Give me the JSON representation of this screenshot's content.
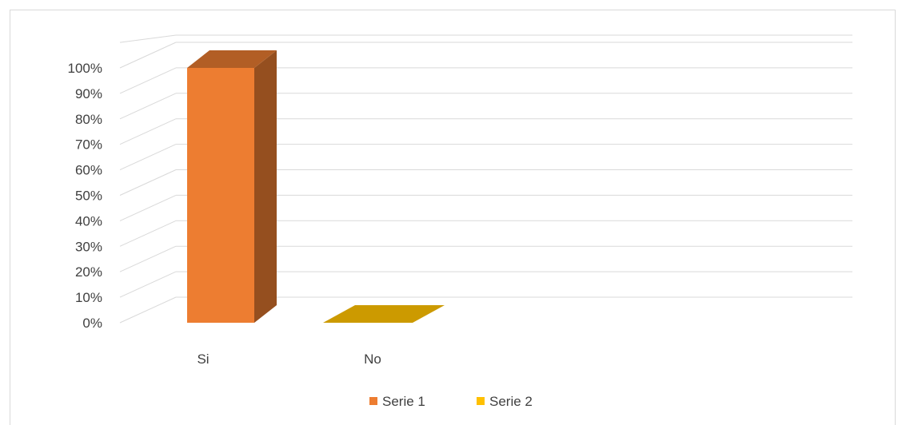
{
  "chart_data": {
    "type": "bar",
    "style": "3d-column",
    "categories": [
      "Si",
      "No"
    ],
    "series": [
      {
        "name": "Serie 1",
        "color": "#ED7D31",
        "values": [
          1.0,
          null
        ]
      },
      {
        "name": "Serie 2",
        "color": "#FFC000",
        "values": [
          null,
          0.0
        ]
      }
    ],
    "y_ticks": [
      "0%",
      "10%",
      "20%",
      "30%",
      "40%",
      "50%",
      "60%",
      "70%",
      "80%",
      "90%",
      "100%"
    ],
    "ylim": [
      0,
      1
    ],
    "grid": true,
    "legend_position": "bottom",
    "title": "",
    "xlabel": "",
    "ylabel": ""
  }
}
